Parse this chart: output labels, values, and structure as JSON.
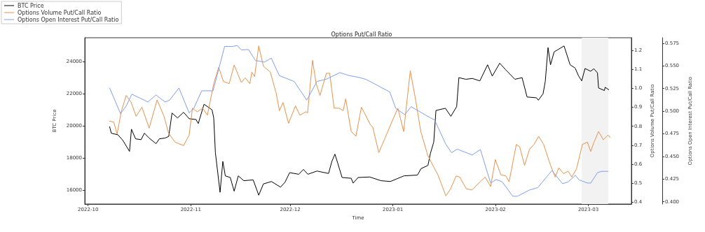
{
  "chart_data": {
    "type": "line",
    "title": "Options Put/Call Ratio",
    "xlabel": "Time",
    "ylabel": "BTC Price",
    "y2label": "Options Volume Put/Call Ratio",
    "y3label": "Options Open Interest Put/Call Ratio",
    "xlim": [
      "2022-09-30",
      "2023-03-14"
    ],
    "xticks": [
      {
        "value": "2022-10-01",
        "label": "2022-10"
      },
      {
        "value": "2022-11-01",
        "label": "2022-11"
      },
      {
        "value": "2022-12-01",
        "label": "2022-12"
      },
      {
        "value": "2023-01-01",
        "label": "2023-01"
      },
      {
        "value": "2023-02-01",
        "label": "2023-02"
      },
      {
        "value": "2023-03-01",
        "label": "2023-03"
      }
    ],
    "ylim": [
      15150,
      25480
    ],
    "yticks": [
      16000,
      18000,
      20000,
      22000,
      24000
    ],
    "y2lim": [
      0.39,
      1.266
    ],
    "y2ticks": [
      0.4,
      0.5,
      0.6,
      0.7,
      0.8,
      0.9,
      {
        "value": 1,
        "label": "1.0"
      },
      1.1,
      1.2
    ],
    "y3lim": [
      0.3974,
      0.581
    ],
    "y3ticks": [
      {
        "value": 0.4,
        "label": "0.400"
      },
      {
        "value": 0.425,
        "label": "0.425"
      },
      {
        "value": 0.45,
        "label": "0.450"
      },
      {
        "value": 0.475,
        "label": "0.475"
      },
      {
        "value": 0.5,
        "label": "0.500"
      },
      {
        "value": 0.525,
        "label": "0.525"
      },
      {
        "value": 0.55,
        "label": "0.550"
      },
      {
        "value": 0.575,
        "label": "0.575"
      }
    ],
    "grid": false,
    "legend": "top left",
    "marker": "none",
    "line_style": "solid",
    "bands": [
      {
        "axis": "x",
        "from": "2023-02-27",
        "to": "2023-03-07",
        "color": "#f2f2f2"
      }
    ],
    "series": [
      {
        "name": "BTC Price",
        "color": "#000000",
        "x": [
          "2022-10-07T12:00",
          "2022-10-08",
          "2022-10-10",
          "2022-10-11T12:00",
          "2022-10-13T12:00",
          "2022-10-14T02:00",
          "2022-10-15T08:00",
          "2022-10-17",
          "2022-10-18",
          "2022-10-19T10:00",
          "2022-10-21T12:00",
          "2022-10-22T12:00",
          "2022-10-24T06:00",
          "2022-10-25T08:00",
          "2022-10-26T08:00",
          "2022-10-28",
          "2022-10-29T20:00",
          "2022-10-31T12:00",
          "2022-11-02T14:00",
          "2022-11-03T06:00",
          "2022-11-05",
          "2022-11-07T10:00",
          "2022-11-07T22:00",
          "2022-11-08T10:00",
          "2022-11-09T20:00",
          "2022-11-10T16:00",
          "2022-11-11T10:00",
          "2022-11-12T22:00",
          "2022-11-14T02:00",
          "2022-11-15T08:00",
          "2022-11-17",
          "2022-11-19T20:00",
          "2022-11-21T12:00",
          "2022-11-22T22:00",
          "2022-11-25T08:00",
          "2022-11-28T02:00",
          "2022-11-29T10:00",
          "2022-11-30T20:00",
          "2022-12-03T14:00",
          "2022-12-05",
          "2022-12-06T08:00",
          "2022-12-09T02:00",
          "2022-12-12T14:00",
          "2022-12-13T14:00",
          "2022-12-14T12:00",
          "2022-12-15T08:00",
          "2022-12-16T16:00",
          "2022-12-19T10:00",
          "2022-12-20",
          "2022-12-21T12:00",
          "2022-12-25",
          "2022-12-28T10:00",
          "2022-12-31T06:00",
          "2023-01-04T08:00",
          "2023-01-08T10:00",
          "2023-01-09T12:00",
          "2023-01-11T14:00",
          "2023-01-12T08:00",
          "2023-01-13T08:00",
          "2023-01-14",
          "2023-01-16T20:00",
          "2023-01-18T12:00",
          "2023-01-20T06:00",
          "2023-01-20T22:00",
          "2023-01-23",
          "2023-01-25",
          "2023-01-27T06:00",
          "2023-01-29T14:00",
          "2023-01-31",
          "2023-02-02T06:00",
          "2023-02-04",
          "2023-02-06T20:00",
          "2023-02-09",
          "2023-02-10T12:00",
          "2023-02-13T08:00",
          "2023-02-13T22:00",
          "2023-02-15T08:00",
          "2023-02-16",
          "2023-02-16T20:00",
          "2023-02-17T14:00",
          "2023-02-18T16:00",
          "2023-02-21T16:00",
          "2023-02-23T12:00",
          "2023-02-25",
          "2023-02-26",
          "2023-02-27",
          "2023-02-28",
          "2023-03-01T16:00",
          "2023-03-02T16:00",
          "2023-03-03T18:00",
          "2023-03-04T02:00",
          "2023-03-05T20:00",
          "2023-03-06T02:00",
          "2023-03-07T04:00"
        ],
        "values": [
          19950,
          19550,
          19450,
          19100,
          18420,
          19800,
          19200,
          19150,
          19550,
          19250,
          18900,
          19200,
          19250,
          19350,
          20800,
          20500,
          20850,
          20450,
          20400,
          20150,
          21350,
          21000,
          20500,
          18350,
          15880,
          17800,
          16900,
          16800,
          15950,
          16900,
          16600,
          16650,
          15700,
          16400,
          16550,
          16200,
          16500,
          17100,
          17000,
          17300,
          17000,
          17200,
          17050,
          17800,
          18250,
          17700,
          16800,
          16750,
          16450,
          16800,
          16830,
          16600,
          16550,
          16900,
          16950,
          17350,
          17550,
          18300,
          19000,
          20960,
          21100,
          20600,
          21200,
          23000,
          22900,
          22950,
          22800,
          23800,
          23100,
          23900,
          23500,
          22900,
          23000,
          21800,
          21750,
          21600,
          22000,
          22770,
          24870,
          23800,
          24600,
          24970,
          23800,
          23600,
          23130,
          22800,
          23570,
          23400,
          23550,
          23300,
          22360,
          22200,
          22400,
          22250
        ]
      },
      {
        "name": "Options Volume Put/Call Ratio",
        "color": "#e8914a",
        "axis": "y2",
        "x": [
          "2022-10-07T12:00",
          "2022-10-08T18:00",
          "2022-10-09T18:00",
          "2022-10-11",
          "2022-10-12T12:00",
          "2022-10-14",
          "2022-10-15T12:00",
          "2022-10-17T06:00",
          "2022-10-19T10:00",
          "2022-10-21T20:00",
          "2022-10-23T22:00",
          "2022-10-25T06:00",
          "2022-10-27T06:00",
          "2022-10-29T20:00",
          "2022-10-31T12:00",
          "2022-11-01T12:00",
          "2022-11-02T22:00",
          "2022-11-04T14:00",
          "2022-11-06",
          "2022-11-07T22:00",
          "2022-11-09T10:00",
          "2022-11-10T20:00",
          "2022-11-12T14:00",
          "2022-11-14T02:00",
          "2022-11-16T06:00",
          "2022-11-17T10:00",
          "2022-11-18T20:00",
          "2022-11-19T10:00",
          "2022-11-20T06:00",
          "2022-11-21T12:00",
          "2022-11-22T22:00",
          "2022-11-25",
          "2022-11-26T18:00",
          "2022-11-27T18:00",
          "2022-11-28T20:00",
          "2022-11-30T12:00",
          "2022-12-02T14:00",
          "2022-12-03T22:00",
          "2022-12-05T18:00",
          "2022-12-06T06:00",
          "2022-12-07T18:00",
          "2022-12-08T20:00",
          "2022-12-10",
          "2022-12-11T22:00",
          "2022-12-12T22:00",
          "2022-12-14T06:00",
          "2022-12-15T18:00",
          "2022-12-17",
          "2022-12-17T18:00",
          "2022-12-19T10:00",
          "2022-12-20T20:00",
          "2022-12-22T12:00",
          "2022-12-25T06:00",
          "2022-12-25T22:00",
          "2022-12-27T18:00",
          "2022-12-29T10:00",
          "2023-01-01T02:00",
          "2023-01-02T12:00",
          "2023-01-04T06:00",
          "2023-01-06T06:00",
          "2023-01-07T18:00",
          "2023-01-09T10:00",
          "2023-01-11T12:00",
          "2023-01-12T12:00",
          "2023-01-14T14:00",
          "2023-01-17",
          "2023-01-18T10:00",
          "2023-01-20T02:00",
          "2023-01-21T04:00",
          "2023-01-23T04:00",
          "2023-01-24T22:00",
          "2023-01-26T06:00",
          "2023-01-28T20:00",
          "2023-01-30T12:00",
          "2023-01-31T22:00",
          "2023-02-02T14:00",
          "2023-02-04T02:00",
          "2023-02-05T02:00",
          "2023-02-07T06:00",
          "2023-02-08T06:00",
          "2023-02-09T18:00",
          "2023-02-11T06:00",
          "2023-02-12T14:00",
          "2023-02-14",
          "2023-02-15T12:00",
          "2023-02-17T14:00",
          "2023-02-19",
          "2023-02-20T02:00",
          "2023-02-21T12:00",
          "2023-02-22T22:00",
          "2023-02-24",
          "2023-02-25T10:00",
          "2023-02-27T05:00",
          "2023-02-28T17:00",
          "2023-03-01T17:00",
          "2023-03-02T17:00",
          "2023-03-04T02:00",
          "2023-03-05T12:00",
          "2023-03-06T22:00",
          "2023-03-07T14:00"
        ],
        "values": [
          0.827,
          0.821,
          0.759,
          0.876,
          0.962,
          0.925,
          0.852,
          0.9,
          0.79,
          0.938,
          0.852,
          0.765,
          0.716,
          0.698,
          0.753,
          0.895,
          0.876,
          0.895,
          0.858,
          1.024,
          1.11,
          1.036,
          1.024,
          1.122,
          1.03,
          1.055,
          1.024,
          1.085,
          1.061,
          1.223,
          1.116,
          1.085,
          0.975,
          0.882,
          0.925,
          0.815,
          0.907,
          0.858,
          0.876,
          0.87,
          1.147,
          1.024,
          0.962,
          1.079,
          1.079,
          0.895,
          0.895,
          0.882,
          0.944,
          0.772,
          0.747,
          0.9,
          0.807,
          0.795,
          0.661,
          0.729,
          0.839,
          0.895,
          0.772,
          1.092,
          0.95,
          0.772,
          0.648,
          0.612,
          0.544,
          0.433,
          0.47,
          0.538,
          0.532,
          0.47,
          0.464,
          0.489,
          0.532,
          0.482,
          0.624,
          0.544,
          0.538,
          0.507,
          0.704,
          0.692,
          0.594,
          0.679,
          0.704,
          0.747,
          0.704,
          0.594,
          0.532,
          0.581,
          0.55,
          0.563,
          0.532,
          0.575,
          0.704,
          0.716,
          0.667,
          0.716,
          0.772,
          0.729,
          0.753,
          0.741
        ]
      },
      {
        "name": "Options Open Interest Put/Call Ratio",
        "color": "#7f9ef0",
        "axis": "y3",
        "x": [
          "2022-10-07T12:00",
          "2022-10-10T19:00",
          "2022-10-12T12:00",
          "2022-10-14T05:00",
          "2022-10-19T02:00",
          "2022-10-21T12:00",
          "2022-10-24T05:00",
          "2022-10-25T14:00",
          "2022-10-28T10:00",
          "2022-10-31T12:00",
          "2022-11-01T22:00",
          "2022-11-04T07:00",
          "2022-11-07T17:00",
          "2022-11-11T05:00",
          "2022-11-13T14:00",
          "2022-11-15",
          "2022-11-16T07:00",
          "2022-11-18T10:00",
          "2022-11-20T12:00",
          "2022-11-23T05:00",
          "2022-11-25T07:00",
          "2022-11-27T17:00",
          "2022-12-02T05:00",
          "2022-12-06",
          "2022-12-09T02:00",
          "2022-12-11T22:00",
          "2022-12-16",
          "2022-12-18T19:00",
          "2022-12-22",
          "2022-12-23T22:00",
          "2022-12-31T02:00",
          "2023-01-01T20:00",
          "2023-01-04T14:00",
          "2023-01-06T12:00",
          "2023-01-12T05:00",
          "2023-01-13T14:00",
          "2023-01-17",
          "2023-01-18T17:00",
          "2023-01-20T10:00",
          "2023-01-24T22:00",
          "2023-01-27T10:00",
          "2023-01-30T12:00",
          "2023-02-01T05:00",
          "2023-02-03",
          "2023-02-06T05:00",
          "2023-02-07T14:00",
          "2023-02-11T05:00",
          "2023-02-13T17:00",
          "2023-02-18",
          "2023-02-21T05:00",
          "2023-02-22T22:00",
          "2023-02-25T02:00",
          "2023-02-26T05:00",
          "2023-02-28T17:00",
          "2023-03-01T17:00",
          "2023-03-03T19:00",
          "2023-03-05T02:00",
          "2023-03-06T22:00"
        ],
        "values": [
          0.5255,
          0.4972,
          0.5057,
          0.5186,
          0.5101,
          0.5178,
          0.5101,
          0.5121,
          0.5255,
          0.498,
          0.5031,
          0.5224,
          0.5224,
          0.5714,
          0.5714,
          0.5724,
          0.5675,
          0.568,
          0.5559,
          0.5541,
          0.5585,
          0.5392,
          0.5327,
          0.5121,
          0.5327,
          0.5353,
          0.5425,
          0.5392,
          0.537,
          0.535,
          0.5211,
          0.5031,
          0.4961,
          0.5049,
          0.4928,
          0.4902,
          0.4632,
          0.4541,
          0.458,
          0.4516,
          0.4575,
          0.4206,
          0.4245,
          0.4219,
          0.406,
          0.406,
          0.4129,
          0.4155,
          0.4343,
          0.4199,
          0.4219,
          0.4291,
          0.424,
          0.4206,
          0.4206,
          0.4322,
          0.4335,
          0.4335
        ]
      }
    ]
  }
}
